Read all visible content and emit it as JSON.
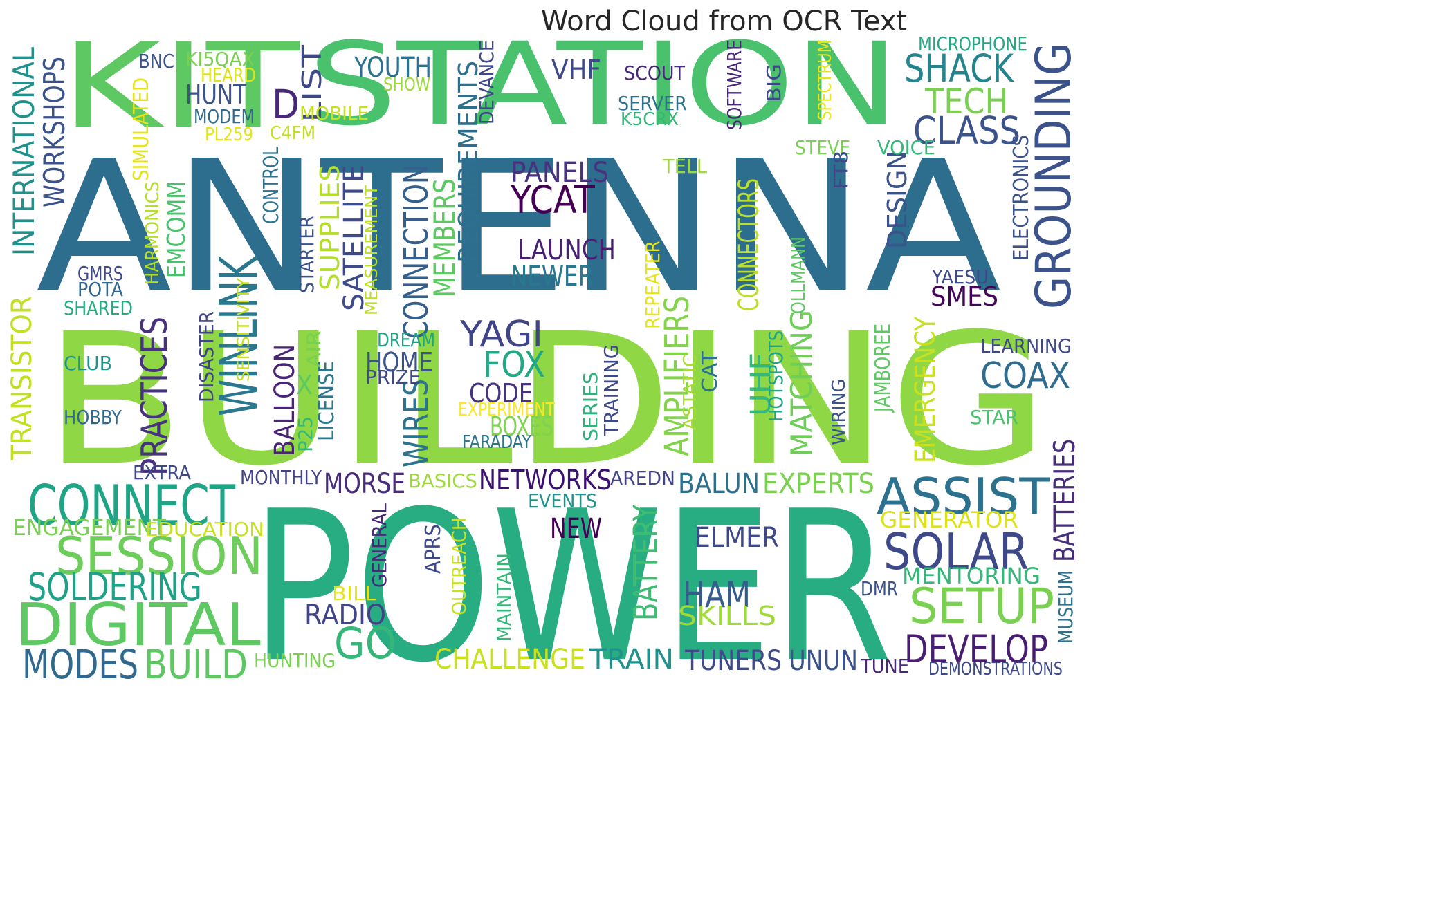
{
  "chart_data": {
    "type": "wordcloud",
    "title": "Word Cloud from OCR Text",
    "colormap": "viridis",
    "words": [
      {
        "text": "ANTENNA",
        "weight": 100,
        "color": "#2d6e8e"
      },
      {
        "text": "BUILDING",
        "weight": 96,
        "color": "#8fd744"
      },
      {
        "text": "POWER",
        "weight": 90,
        "color": "#27ad81"
      },
      {
        "text": "STATION",
        "weight": 70,
        "color": "#4ac16d"
      },
      {
        "text": "KIT",
        "weight": 66,
        "color": "#5ec962"
      },
      {
        "text": "GROUNDING",
        "weight": 28,
        "color": "#3b528b"
      },
      {
        "text": "ASSIST",
        "weight": 26,
        "color": "#2c728e"
      },
      {
        "text": "CONNECT",
        "weight": 26,
        "color": "#20a486"
      },
      {
        "text": "DIGITAL",
        "weight": 26,
        "color": "#5ec962"
      },
      {
        "text": "SESSION",
        "weight": 24,
        "color": "#6ccd5a"
      },
      {
        "text": "SOLAR",
        "weight": 24,
        "color": "#3e4989"
      },
      {
        "text": "SETUP",
        "weight": 22,
        "color": "#7ad151"
      },
      {
        "text": "WINLINK",
        "weight": 22,
        "color": "#2a788e"
      },
      {
        "text": "GO",
        "weight": 22,
        "color": "#35b779"
      },
      {
        "text": "SOLDERING",
        "weight": 20,
        "color": "#1fa187"
      },
      {
        "text": "MODES",
        "weight": 20,
        "color": "#31688e"
      },
      {
        "text": "BUILD",
        "weight": 20,
        "color": "#5ec962"
      },
      {
        "text": "DEVELOP",
        "weight": 19,
        "color": "#481f70"
      },
      {
        "text": "SHACK",
        "weight": 18,
        "color": "#25858e"
      },
      {
        "text": "YCAT",
        "weight": 18,
        "color": "#440154"
      },
      {
        "text": "TECH",
        "weight": 17,
        "color": "#7ad151"
      },
      {
        "text": "CLASS",
        "weight": 17,
        "color": "#3b528b"
      },
      {
        "text": "YAGI",
        "weight": 17,
        "color": "#414487"
      },
      {
        "text": "FOX",
        "weight": 17,
        "color": "#22a884"
      },
      {
        "text": "COAX",
        "weight": 17,
        "color": "#2f6c8e"
      },
      {
        "text": "PRACTICES",
        "weight": 17,
        "color": "#46327e"
      },
      {
        "text": "AMPLIFIERS",
        "weight": 16,
        "color": "#84d44b"
      },
      {
        "text": "MATCHING",
        "weight": 16,
        "color": "#6ece58"
      },
      {
        "text": "HAM",
        "weight": 17,
        "color": "#365c8d"
      },
      {
        "text": "BATTERY",
        "weight": 16,
        "color": "#3fbc73"
      },
      {
        "text": "BATTERIES",
        "weight": 16,
        "color": "#472d7b"
      },
      {
        "text": "CONNECTORS",
        "weight": 16,
        "color": "#bddf26"
      },
      {
        "text": "SATELLITE",
        "weight": 15,
        "color": "#3e4a89"
      },
      {
        "text": "CONNECTION",
        "weight": 16,
        "color": "#355f8d"
      },
      {
        "text": "MEMBERS",
        "weight": 15,
        "color": "#5ec962"
      },
      {
        "text": "REQUIREMENTS",
        "weight": 15,
        "color": "#2e6f8e"
      },
      {
        "text": "SUPPLIES",
        "weight": 15,
        "color": "#b5de2b"
      },
      {
        "text": "BALLOON",
        "weight": 15,
        "color": "#482576"
      },
      {
        "text": "WIRES",
        "weight": 15,
        "color": "#2c738e"
      },
      {
        "text": "EMERGENCY",
        "weight": 15,
        "color": "#c8e020"
      },
      {
        "text": "UHF",
        "weight": 15,
        "color": "#35b779"
      },
      {
        "text": "DESIGN",
        "weight": 15,
        "color": "#3b528b"
      },
      {
        "text": "LIST",
        "weight": 14,
        "color": "#3e4989"
      },
      {
        "text": "D",
        "weight": 16,
        "color": "#482878"
      },
      {
        "text": "WORKSHOPS",
        "weight": 14,
        "color": "#3b528b"
      },
      {
        "text": "INTERNATIONAL",
        "weight": 14,
        "color": "#21918c"
      },
      {
        "text": "TRANSISTOR",
        "weight": 14,
        "color": "#c2df23"
      },
      {
        "text": "EXPERTS",
        "weight": 15,
        "color": "#7ad151"
      },
      {
        "text": "BALUN",
        "weight": 15,
        "color": "#2d708e"
      },
      {
        "text": "NETWORKS",
        "weight": 15,
        "color": "#3b0f70"
      },
      {
        "text": "MORSE",
        "weight": 14,
        "color": "#472d7b"
      },
      {
        "text": "PANELS",
        "weight": 14,
        "color": "#46327e"
      },
      {
        "text": "LAUNCH",
        "weight": 14,
        "color": "#482173"
      },
      {
        "text": "NEWER",
        "weight": 14,
        "color": "#2a788e"
      },
      {
        "text": "HOME",
        "weight": 14,
        "color": "#3b528b"
      },
      {
        "text": "CODE",
        "weight": 14,
        "color": "#46337f"
      },
      {
        "text": "BOXES",
        "weight": 14,
        "color": "#7fd34e"
      },
      {
        "text": "YOUTH",
        "weight": 13,
        "color": "#2c728e"
      },
      {
        "text": "HUNT",
        "weight": 13,
        "color": "#3b528b"
      },
      {
        "text": "VHF",
        "weight": 13,
        "color": "#3e4989"
      },
      {
        "text": "ENGAGEMENT",
        "weight": 13,
        "color": "#7ad151"
      },
      {
        "text": "MENTORING",
        "weight": 13,
        "color": "#35b779"
      },
      {
        "text": "SKILLS",
        "weight": 13,
        "color": "#a0da39"
      },
      {
        "text": "GENERATOR",
        "weight": 13,
        "color": "#dde318"
      },
      {
        "text": "SMES",
        "weight": 13,
        "color": "#450559"
      },
      {
        "text": "EMCOMM",
        "weight": 13,
        "color": "#4ac16d"
      },
      {
        "text": "CHALLENGE",
        "weight": 13,
        "color": "#c8e020"
      },
      {
        "text": "TRAIN",
        "weight": 13,
        "color": "#21918c"
      },
      {
        "text": "TUNERS",
        "weight": 13,
        "color": "#3e4a89"
      },
      {
        "text": "UNUN",
        "weight": 13,
        "color": "#3b528b"
      },
      {
        "text": "ELMER",
        "weight": 13,
        "color": "#3e4989"
      },
      {
        "text": "RADIO",
        "weight": 13,
        "color": "#414487"
      },
      {
        "text": "NEW",
        "weight": 13,
        "color": "#440154"
      },
      {
        "text": "EDUCATION",
        "weight": 10,
        "color": "#c8e020"
      },
      {
        "text": "TRAINING",
        "weight": 10,
        "color": "#3e4989"
      },
      {
        "text": "SERIES",
        "weight": 10,
        "color": "#2db27d"
      },
      {
        "text": "HOTSPOTS",
        "weight": 10,
        "color": "#20a386"
      },
      {
        "text": "JAMBOREE",
        "weight": 9,
        "color": "#5ec962"
      },
      {
        "text": "WIRING",
        "weight": 9,
        "color": "#3b528b"
      },
      {
        "text": "ASTATIC",
        "weight": 9,
        "color": "#a8db34"
      },
      {
        "text": "CAT",
        "weight": 9,
        "color": "#2c728e"
      },
      {
        "text": "REPEATER",
        "weight": 9,
        "color": "#e7e419"
      },
      {
        "text": "OLLMANN",
        "weight": 9,
        "color": "#5ec962"
      },
      {
        "text": "YAESU",
        "weight": 9,
        "color": "#3e4989"
      },
      {
        "text": "ELECTRONICS",
        "weight": 9,
        "color": "#3b528b"
      },
      {
        "text": "LEARNING",
        "weight": 9,
        "color": "#3e4989"
      },
      {
        "text": "STAR",
        "weight": 9,
        "color": "#4ac16d"
      },
      {
        "text": "AREDN",
        "weight": 9,
        "color": "#414487"
      },
      {
        "text": "EVENTS",
        "weight": 9,
        "color": "#21918c"
      },
      {
        "text": "MONTHLY",
        "weight": 9,
        "color": "#414487"
      },
      {
        "text": "BASICS",
        "weight": 9,
        "color": "#9fda3a"
      },
      {
        "text": "FARADAY",
        "weight": 9,
        "color": "#2a788e"
      },
      {
        "text": "EXPERIMENT",
        "weight": 8,
        "color": "#fde725"
      },
      {
        "text": "PRIZE",
        "weight": 9,
        "color": "#3e4989"
      },
      {
        "text": "DREAM",
        "weight": 9,
        "color": "#20a486"
      },
      {
        "text": "LICENSE",
        "weight": 9,
        "color": "#2a788e"
      },
      {
        "text": "STARTER",
        "weight": 9,
        "color": "#3b528b"
      },
      {
        "text": "MEASUREMENT",
        "weight": 8,
        "color": "#bddf26"
      },
      {
        "text": "AIR",
        "weight": 9,
        "color": "#7ad151"
      },
      {
        "text": "P25",
        "weight": 9,
        "color": "#35b779"
      },
      {
        "text": "X",
        "weight": 11,
        "color": "#5ec962"
      },
      {
        "text": "SENSITIVITY",
        "weight": 8,
        "color": "#c8e020"
      },
      {
        "text": "DISASTER",
        "weight": 9,
        "color": "#414487"
      },
      {
        "text": "CONTROL",
        "weight": 9,
        "color": "#2c728e"
      },
      {
        "text": "HARMONICS",
        "weight": 8,
        "color": "#b5de2b"
      },
      {
        "text": "SIMULATED",
        "weight": 9,
        "color": "#e5e419"
      },
      {
        "text": "CLUB",
        "weight": 10,
        "color": "#21918c"
      },
      {
        "text": "HOBBY",
        "weight": 10,
        "color": "#31688e"
      },
      {
        "text": "EXTRA",
        "weight": 9,
        "color": "#3e4989"
      },
      {
        "text": "SHARED",
        "weight": 9,
        "color": "#25ab82"
      },
      {
        "text": "POTA",
        "weight": 9,
        "color": "#31688e"
      },
      {
        "text": "GMRS",
        "weight": 9,
        "color": "#3e4989"
      },
      {
        "text": "BNC",
        "weight": 9,
        "color": "#3b528b"
      },
      {
        "text": "KI5QAX",
        "weight": 9,
        "color": "#7ad151"
      },
      {
        "text": "HEARD",
        "weight": 9,
        "color": "#dde318"
      },
      {
        "text": "MODEM",
        "weight": 9,
        "color": "#31688e"
      },
      {
        "text": "MOBILE",
        "weight": 9,
        "color": "#c8e020"
      },
      {
        "text": "PL259",
        "weight": 9,
        "color": "#e7e419"
      },
      {
        "text": "C4FM",
        "weight": 9,
        "color": "#c2df23"
      },
      {
        "text": "SHOW",
        "weight": 9,
        "color": "#a0da39"
      },
      {
        "text": "DEVANCE",
        "weight": 9,
        "color": "#3e4989"
      },
      {
        "text": "SCOUT",
        "weight": 9,
        "color": "#482878"
      },
      {
        "text": "SERVER",
        "weight": 9,
        "color": "#2c728e"
      },
      {
        "text": "K5CRX",
        "weight": 9,
        "color": "#35b779"
      },
      {
        "text": "SOFTWARE",
        "weight": 9,
        "color": "#482576"
      },
      {
        "text": "BIG",
        "weight": 9,
        "color": "#3e4989"
      },
      {
        "text": "SPECTRUM",
        "weight": 9,
        "color": "#e7e419"
      },
      {
        "text": "MICROPHONE",
        "weight": 9,
        "color": "#22a884"
      },
      {
        "text": "STEVE",
        "weight": 9,
        "color": "#7ad151"
      },
      {
        "text": "VOICE",
        "weight": 9,
        "color": "#35b779"
      },
      {
        "text": "TELL",
        "weight": 9,
        "color": "#a0da39"
      },
      {
        "text": "FT8",
        "weight": 9,
        "color": "#3e4989"
      },
      {
        "text": "BILL",
        "weight": 9,
        "color": "#e5e419"
      },
      {
        "text": "OUTREACH",
        "weight": 9,
        "color": "#c8e020"
      },
      {
        "text": "APRS",
        "weight": 9,
        "color": "#3e4989"
      },
      {
        "text": "GENERAL",
        "weight": 9,
        "color": "#482878"
      },
      {
        "text": "MAINTAIN",
        "weight": 9,
        "color": "#35b779"
      },
      {
        "text": "HUNTING",
        "weight": 9,
        "color": "#7ad151"
      },
      {
        "text": "DMR",
        "weight": 9,
        "color": "#3b528b"
      },
      {
        "text": "MUSEUM",
        "weight": 9,
        "color": "#2c728e"
      },
      {
        "text": "TUNE",
        "weight": 9,
        "color": "#482878"
      },
      {
        "text": "DEMONSTRATIONS",
        "weight": 8,
        "color": "#3e4989"
      }
    ]
  }
}
